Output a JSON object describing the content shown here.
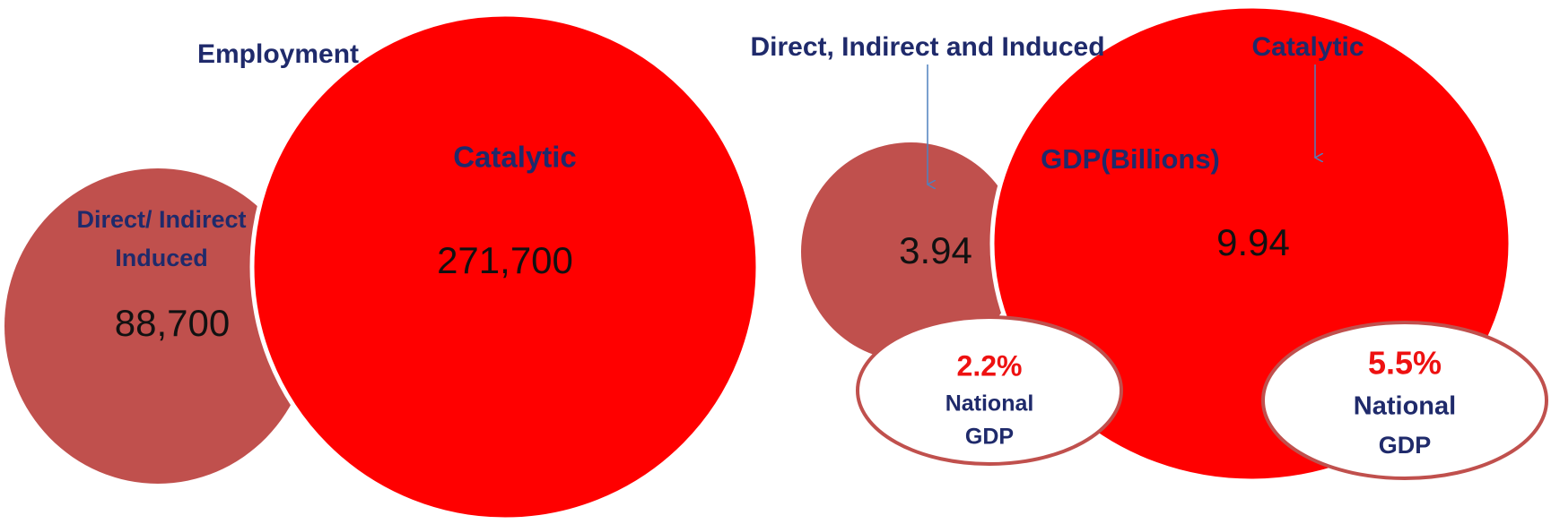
{
  "employment": {
    "title": "Employment",
    "direct": {
      "label": [
        "Direct/ Indirect",
        "Induced"
      ],
      "value": "88,700"
    },
    "catalytic": {
      "label": "Catalytic",
      "value": "271,700"
    }
  },
  "gdp": {
    "title": "GDP(Billions)",
    "direct": {
      "label": "Direct, Indirect and Induced",
      "value": "3.94",
      "share": "2.2%",
      "share_label": [
        "National",
        "GDP"
      ]
    },
    "catalytic": {
      "label": "Catalytic",
      "value": "9.94",
      "share": "5.5%",
      "share_label": [
        "National",
        "GDP"
      ]
    }
  }
}
